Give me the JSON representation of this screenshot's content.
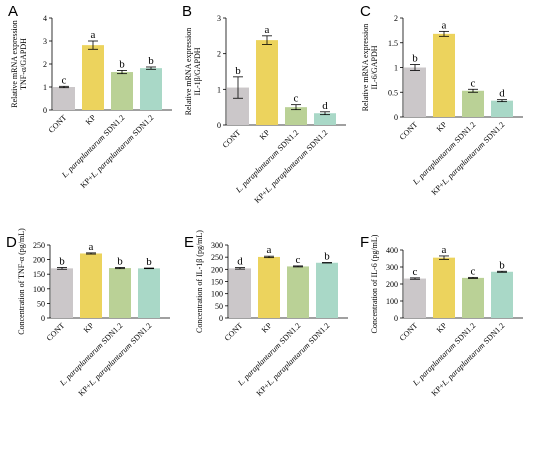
{
  "panels": [
    {
      "label": "A",
      "chart_data": {
        "type": "bar",
        "ylabel_lines": [
          "Relative mRNA expression",
          "TNF-α/GAPDH"
        ],
        "categories": [
          "CONT",
          "KP",
          "L. paraplantarum SDN1.2",
          "KP+L. paraplantarum SDN1.2"
        ],
        "values": [
          1.0,
          2.82,
          1.65,
          1.82
        ],
        "errors": [
          0.03,
          0.18,
          0.07,
          0.05
        ],
        "significance": [
          "c",
          "a",
          "b",
          "b"
        ],
        "ylim": [
          0,
          4
        ],
        "yticks": [
          0,
          1,
          2,
          3,
          4
        ]
      }
    },
    {
      "label": "B",
      "chart_data": {
        "type": "bar",
        "ylabel_lines": [
          "Relative mRNA expression",
          "IL-1β/GAPDH"
        ],
        "categories": [
          "CONT",
          "KP",
          "L. paraplantarum SDN1.2",
          "KP+L. paraplantarum SDN1.2"
        ],
        "values": [
          1.05,
          2.38,
          0.5,
          0.33
        ],
        "errors": [
          0.3,
          0.12,
          0.07,
          0.04
        ],
        "significance": [
          "b",
          "a",
          "c",
          "d"
        ],
        "ylim": [
          0,
          3
        ],
        "yticks": [
          0,
          1,
          2,
          3
        ]
      }
    },
    {
      "label": "C",
      "chart_data": {
        "type": "bar",
        "ylabel_lines": [
          "Relative mRNA expression",
          "IL-6/GAPDH"
        ],
        "categories": [
          "CONT",
          "KP",
          "L. paraplantarum SDN1.2",
          "KP+L. paraplantarum SDN1.2"
        ],
        "values": [
          1.0,
          1.68,
          0.53,
          0.33
        ],
        "errors": [
          0.06,
          0.05,
          0.03,
          0.02
        ],
        "significance": [
          "b",
          "a",
          "c",
          "d"
        ],
        "ylim": [
          0,
          2
        ],
        "yticks": [
          0,
          0.5,
          1,
          1.5,
          2
        ]
      }
    },
    {
      "label": "D",
      "chart_data": {
        "type": "bar",
        "ylabel_lines": [
          "Concentration of TNF-α (pg/mL)"
        ],
        "categories": [
          "CONT",
          "KP",
          "L. paraplantarum SDN1.2",
          "KP+L. paraplantarum SDN1.2"
        ],
        "values": [
          170,
          221,
          171,
          170
        ],
        "errors": [
          3,
          2,
          2,
          1
        ],
        "significance": [
          "b",
          "a",
          "b",
          "b"
        ],
        "ylim": [
          0,
          250
        ],
        "yticks": [
          0,
          50,
          100,
          150,
          200,
          250
        ]
      }
    },
    {
      "label": "E",
      "chart_data": {
        "type": "bar",
        "ylabel_lines": [
          "Concentration of IL-1β (pg/mL)"
        ],
        "categories": [
          "CONT",
          "KP",
          "L. paraplantarum SDN1.2",
          "KP+L. paraplantarum SDN1.2"
        ],
        "values": [
          204,
          251,
          212,
          227
        ],
        "errors": [
          3,
          3,
          2,
          1
        ],
        "significance": [
          "d",
          "a",
          "c",
          "b"
        ],
        "ylim": [
          0,
          300
        ],
        "yticks": [
          0,
          50,
          100,
          150,
          200,
          250,
          300
        ]
      }
    },
    {
      "label": "F",
      "chart_data": {
        "type": "bar",
        "ylabel_lines": [
          "Concentration of IL-6 (pg/mL)"
        ],
        "categories": [
          "CONT",
          "KP",
          "L. paraplantarum SDN1.2",
          "KP+L. paraplantarum SDN1.2"
        ],
        "values": [
          232,
          355,
          236,
          272
        ],
        "errors": [
          4,
          10,
          3,
          3
        ],
        "significance": [
          "c",
          "a",
          "c",
          "b"
        ],
        "ylim": [
          0,
          400
        ],
        "yticks": [
          0,
          100,
          200,
          300,
          400
        ]
      }
    }
  ],
  "colors": {
    "bars": [
      "#cbc7c9",
      "#ecd35d",
      "#bad196",
      "#a9d8c7"
    ]
  }
}
